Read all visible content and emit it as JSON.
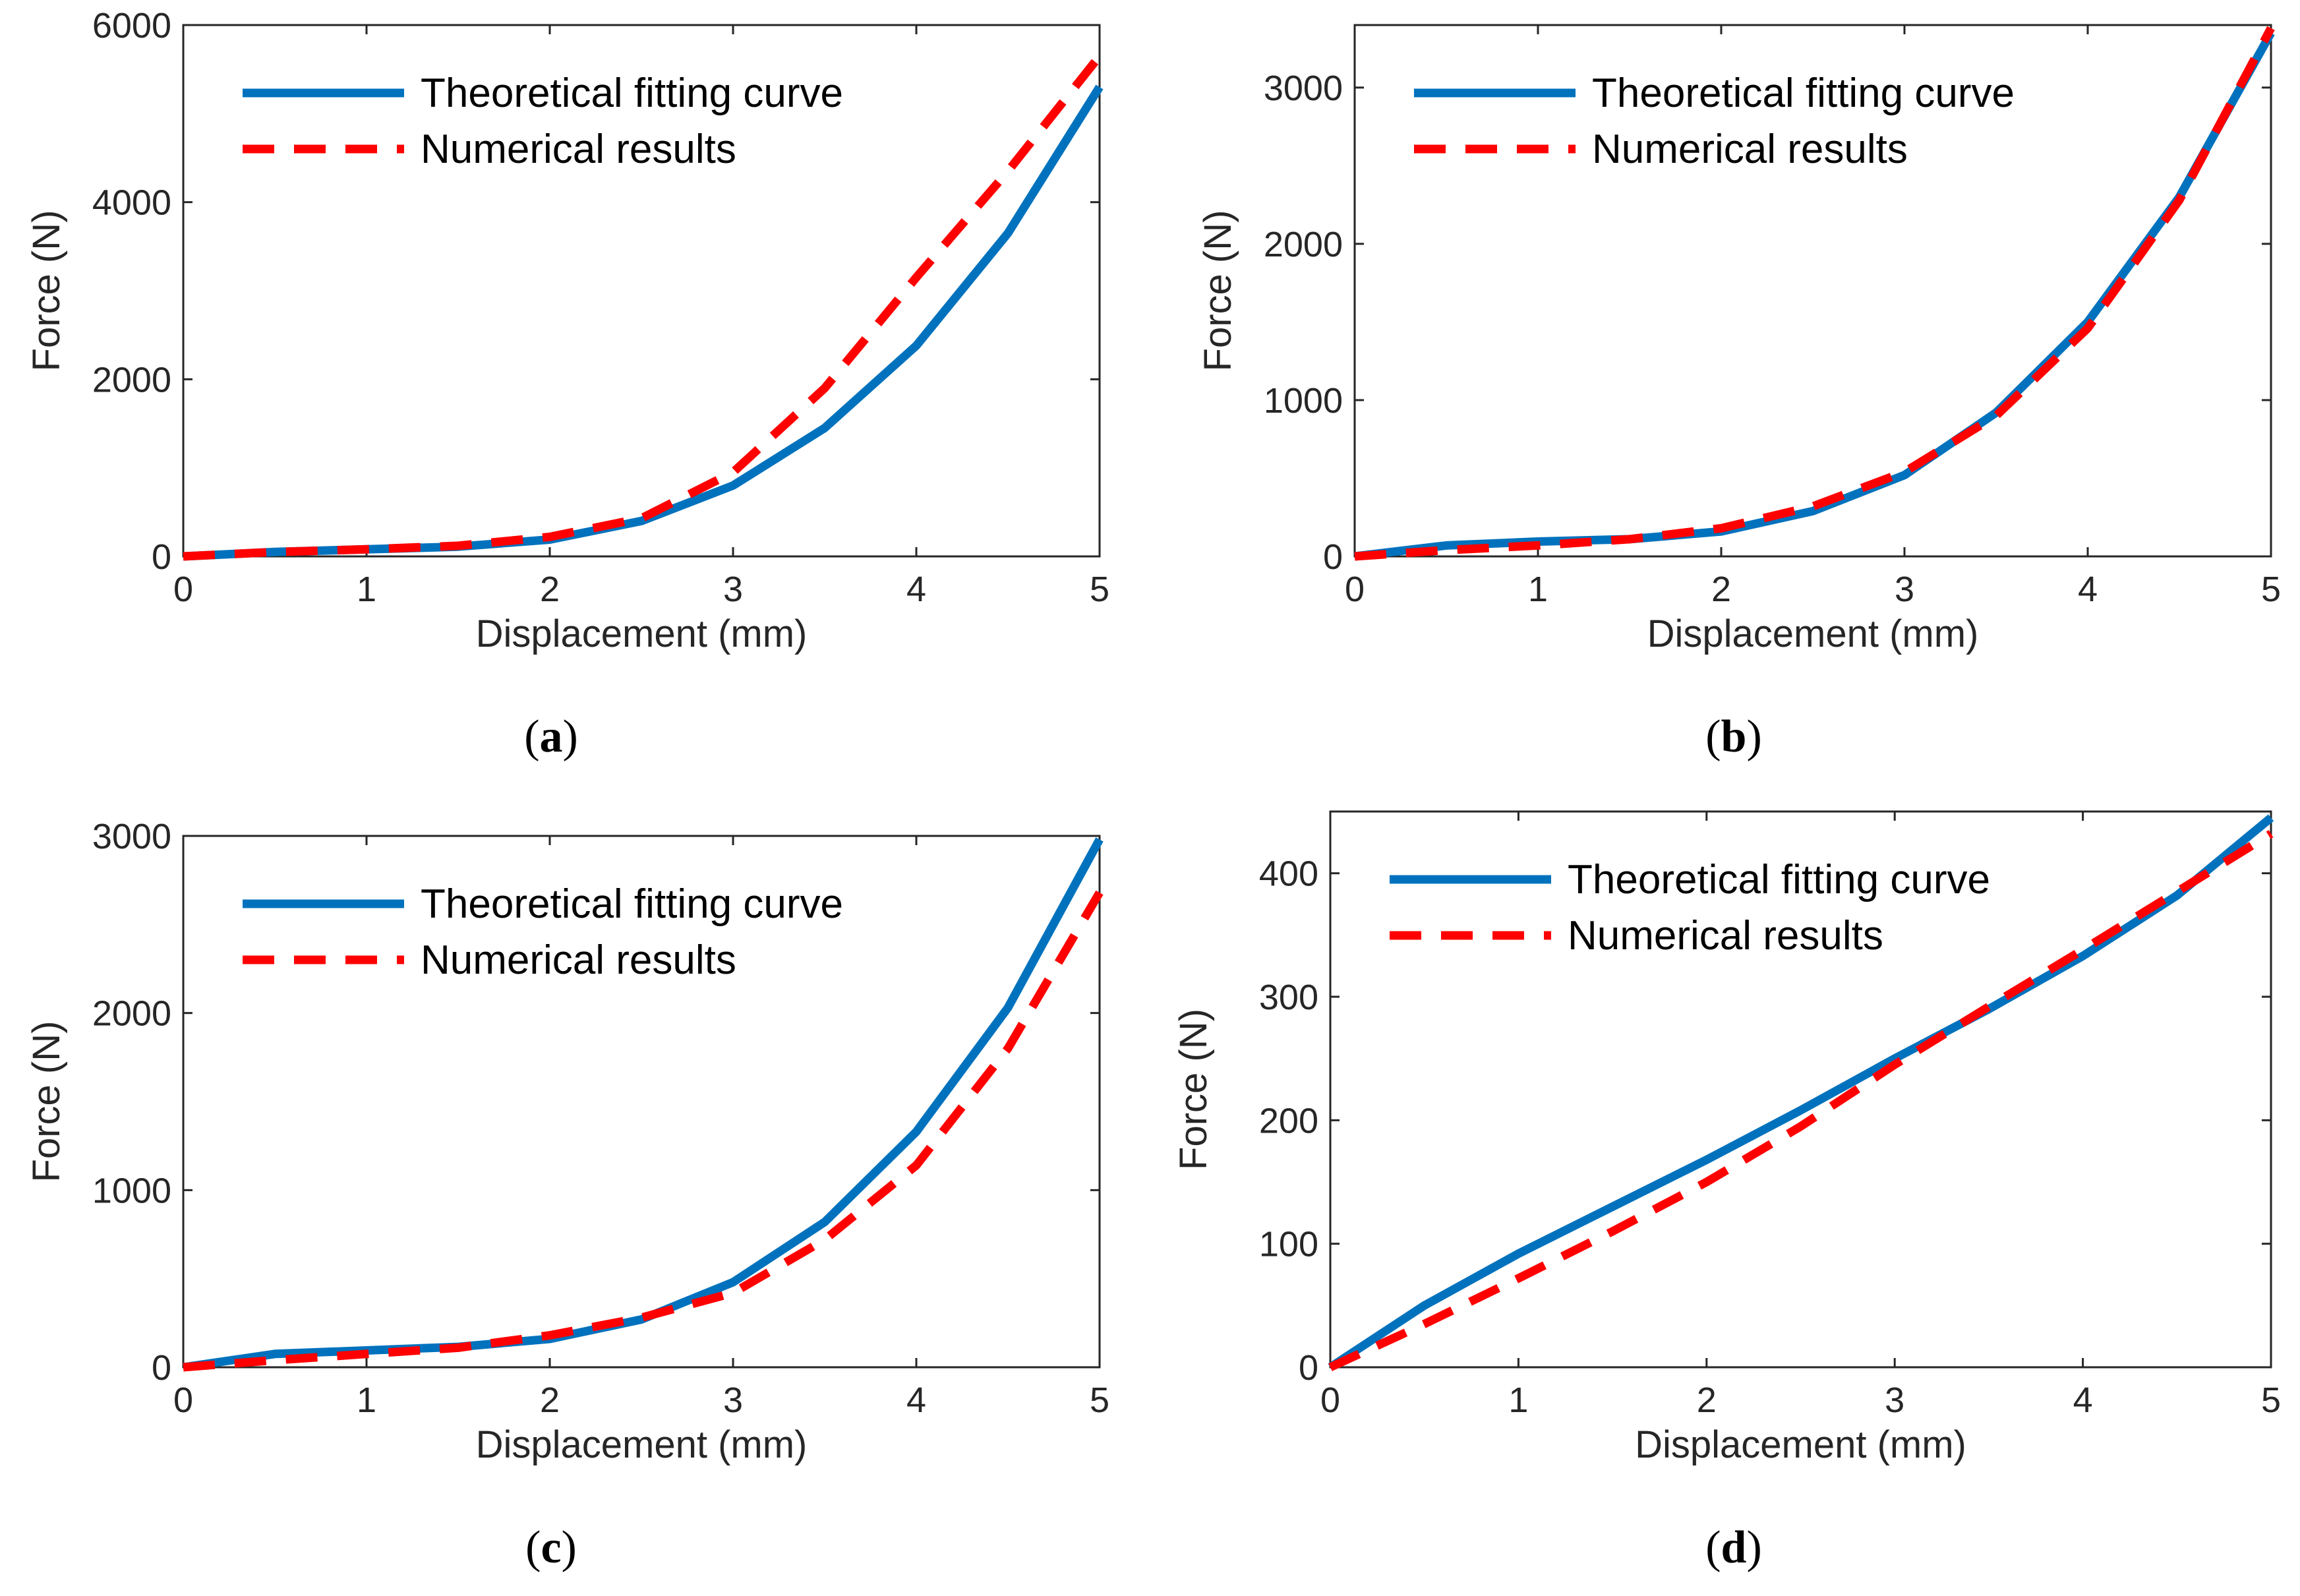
{
  "chart_data": [
    {
      "type": "line",
      "panel_label": "a",
      "xlabel": "Displacement (mm)",
      "ylabel": "Force (N)",
      "xlim": [
        0,
        5
      ],
      "ylim": [
        0,
        6000
      ],
      "xticks": [
        "0",
        "1",
        "2",
        "3",
        "4",
        "5"
      ],
      "yticks": [
        "0",
        "2000",
        "4000",
        "6000"
      ],
      "legend_position": "top-left",
      "series": [
        {
          "name": "Theoretical fitting curve",
          "style": "solid",
          "color": "#0072BD",
          "x": [
            0,
            0.5,
            1,
            1.5,
            2,
            2.5,
            3,
            3.5,
            4,
            4.5,
            5
          ],
          "y": [
            0,
            50,
            80,
            110,
            190,
            400,
            800,
            1450,
            2380,
            3650,
            5300
          ]
        },
        {
          "name": "Numerical results",
          "style": "dashed",
          "color": "#FF0000",
          "x": [
            0,
            0.5,
            1,
            1.5,
            2,
            2.5,
            3,
            3.5,
            4,
            4.5,
            5
          ],
          "y": [
            0,
            50,
            80,
            120,
            220,
            430,
            950,
            1900,
            3150,
            4350,
            5650
          ]
        }
      ]
    },
    {
      "type": "line",
      "panel_label": "b",
      "xlabel": "Displacement (mm)",
      "ylabel": "Force (N)",
      "xlim": [
        0,
        5
      ],
      "ylim": [
        0,
        3400
      ],
      "xticks": [
        "0",
        "1",
        "2",
        "3",
        "4",
        "5"
      ],
      "yticks": [
        "0",
        "1000",
        "2000",
        "3000"
      ],
      "legend_position": "top-left",
      "series": [
        {
          "name": "Theoretical fitting curve",
          "style": "solid",
          "color": "#0072BD",
          "x": [
            0,
            0.5,
            1,
            1.5,
            2,
            2.5,
            3,
            3.5,
            4,
            4.5,
            5
          ],
          "y": [
            0,
            70,
            95,
            110,
            160,
            290,
            520,
            920,
            1500,
            2300,
            3350
          ]
        },
        {
          "name": "Numerical results",
          "style": "dashed",
          "color": "#FF0000",
          "x": [
            0,
            0.5,
            1,
            1.5,
            2,
            2.5,
            3,
            3.5,
            4,
            4.5,
            5
          ],
          "y": [
            0,
            40,
            70,
            110,
            180,
            320,
            540,
            900,
            1460,
            2280,
            3380
          ]
        }
      ]
    },
    {
      "type": "line",
      "panel_label": "c",
      "xlabel": "Displacement (mm)",
      "ylabel": "Force (N)",
      "xlim": [
        0,
        5
      ],
      "ylim": [
        0,
        3000
      ],
      "xticks": [
        "0",
        "1",
        "2",
        "3",
        "4",
        "5"
      ],
      "yticks": [
        "0",
        "1000",
        "2000",
        "3000"
      ],
      "legend_position": "top-left",
      "series": [
        {
          "name": "Theoretical fitting curve",
          "style": "solid",
          "color": "#0072BD",
          "x": [
            0,
            0.5,
            1,
            1.5,
            2,
            2.5,
            3,
            3.5,
            4,
            4.5,
            5
          ],
          "y": [
            0,
            75,
            95,
            115,
            160,
            270,
            480,
            820,
            1330,
            2030,
            2980
          ]
        },
        {
          "name": "Numerical results",
          "style": "dashed",
          "color": "#FF0000",
          "x": [
            0,
            0.5,
            1,
            1.5,
            2,
            2.5,
            3,
            3.5,
            4,
            4.5,
            5
          ],
          "y": [
            0,
            40,
            75,
            110,
            180,
            280,
            420,
            720,
            1140,
            1800,
            2680
          ]
        }
      ]
    },
    {
      "type": "line",
      "panel_label": "d",
      "xlabel": "Displacement (mm)",
      "ylabel": "Force (N)",
      "xlim": [
        0,
        5
      ],
      "ylim": [
        0,
        450
      ],
      "xticks": [
        "0",
        "1",
        "2",
        "3",
        "4",
        "5"
      ],
      "yticks": [
        "0",
        "100",
        "200",
        "300",
        "400"
      ],
      "legend_position": "top-left",
      "series": [
        {
          "name": "Theoretical fitting curve",
          "style": "solid",
          "color": "#0072BD",
          "x": [
            0,
            0.5,
            1,
            1.5,
            2,
            2.5,
            3,
            3.5,
            4,
            4.5,
            5
          ],
          "y": [
            0,
            50,
            92,
            130,
            168,
            208,
            250,
            290,
            333,
            382,
            445
          ]
        },
        {
          "name": "Numerical results",
          "style": "dashed",
          "color": "#FF0000",
          "x": [
            0,
            0.5,
            1,
            1.5,
            2,
            2.5,
            3,
            3.5,
            4,
            4.5,
            5
          ],
          "y": [
            0,
            35,
            72,
            110,
            150,
            195,
            245,
            292,
            338,
            385,
            432
          ]
        }
      ]
    }
  ]
}
